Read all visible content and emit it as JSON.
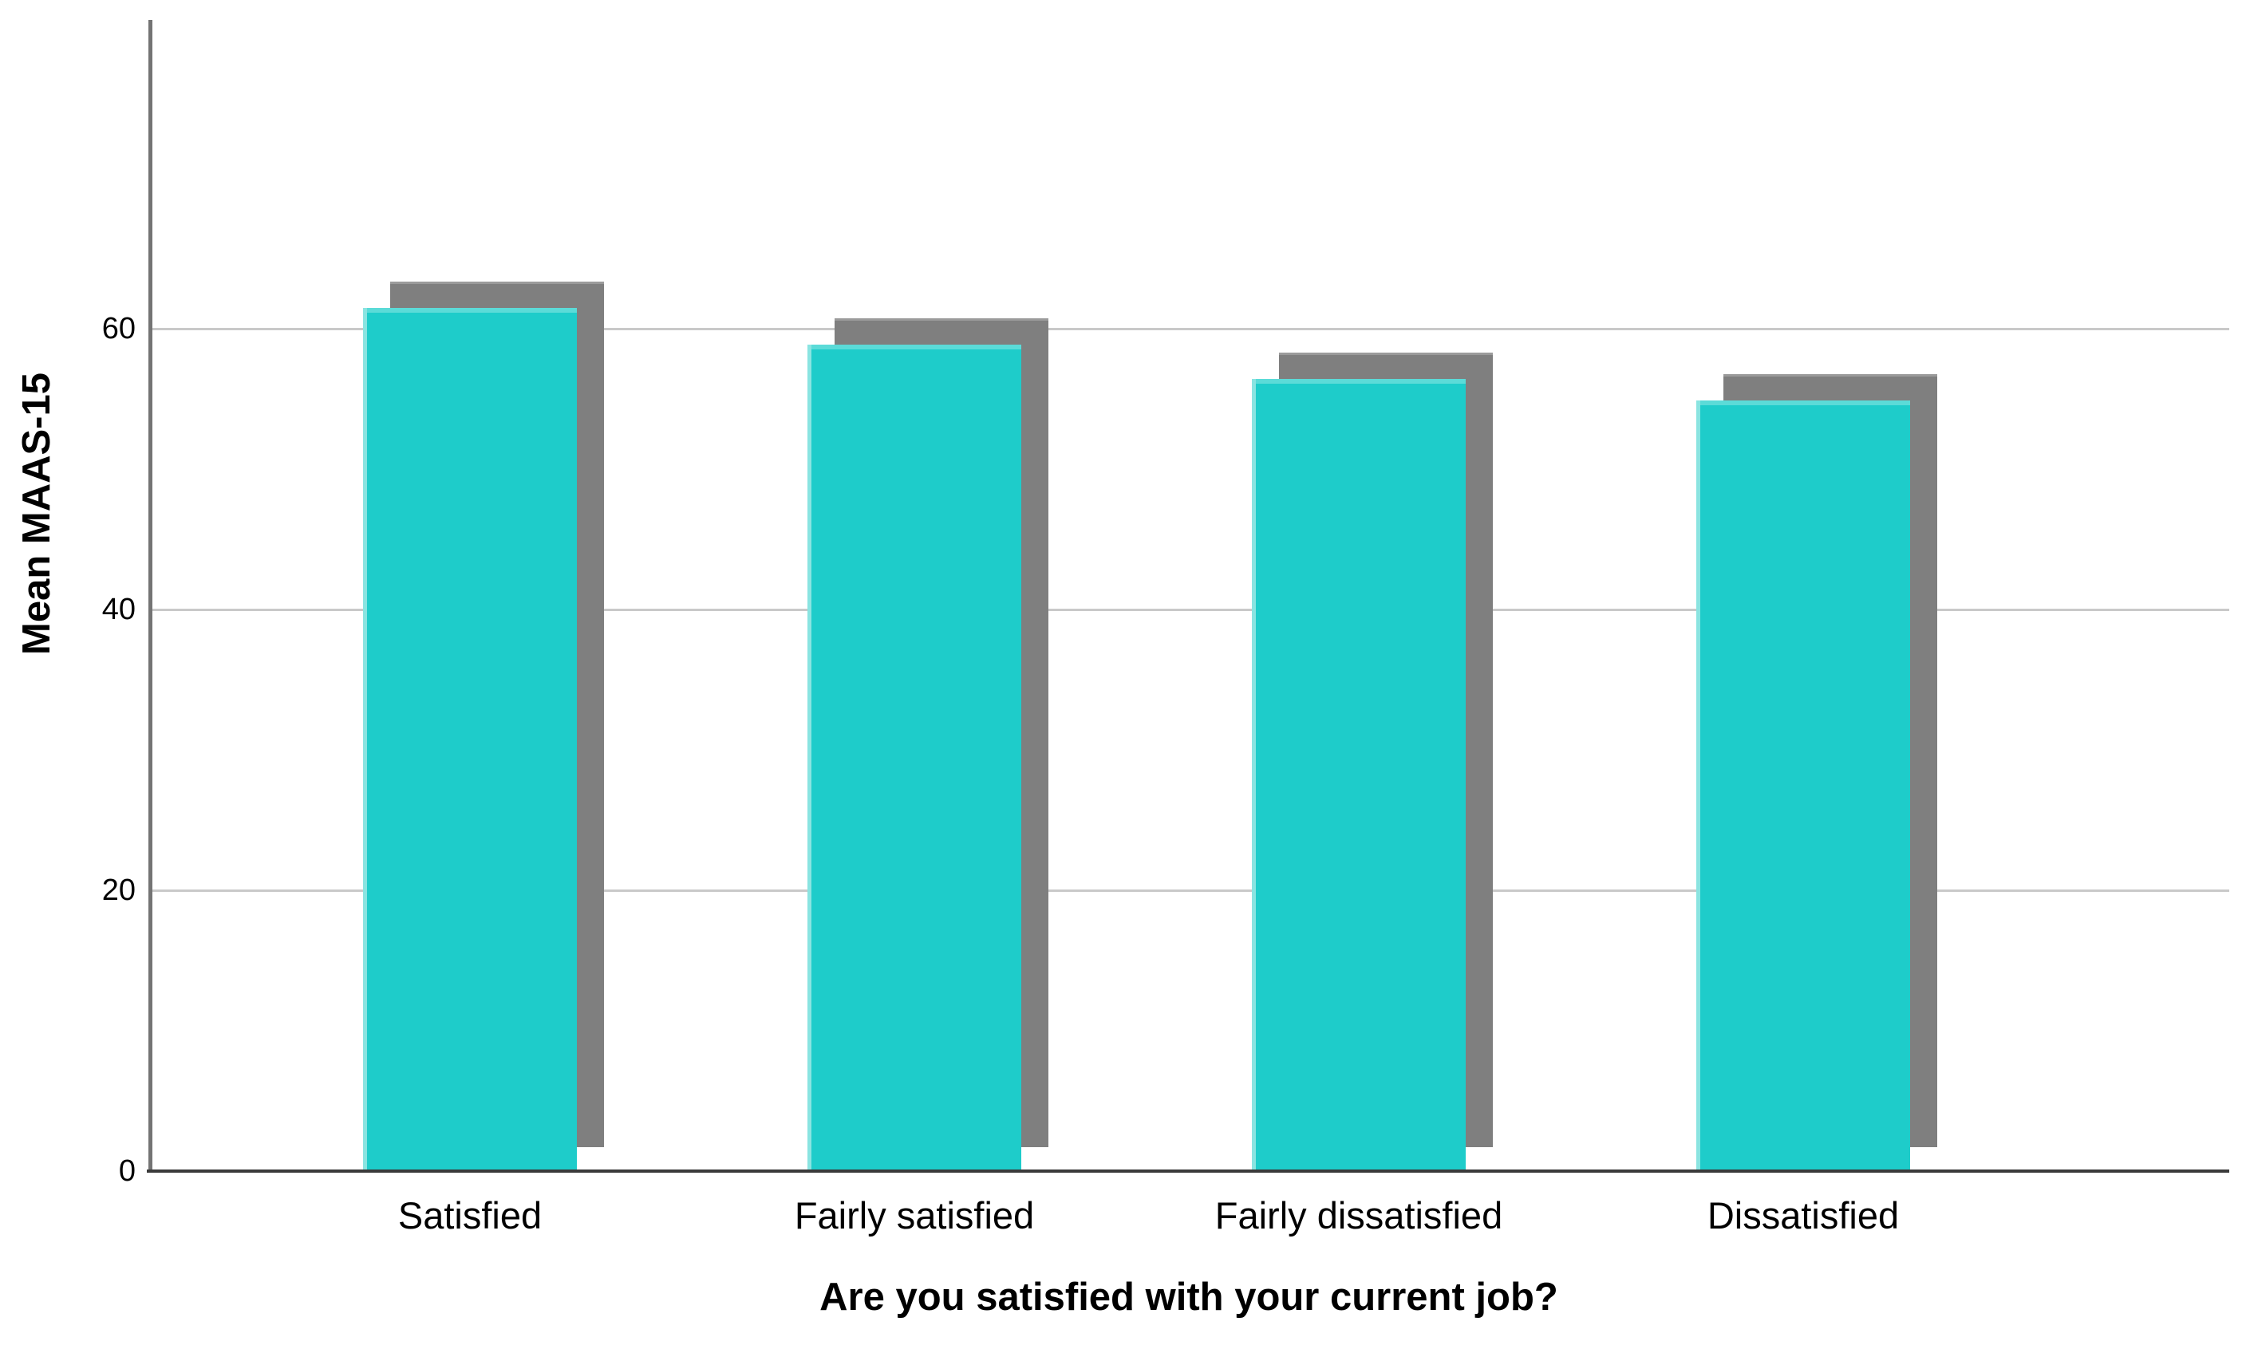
{
  "chart_data": {
    "type": "bar",
    "title": "",
    "categories": [
      "Satisfied",
      "Fairly satisfied",
      "Fairly dissatisfied",
      "Dissatisfied"
    ],
    "series": [
      {
        "name": "Mean MAAS-15",
        "values": [
          61.5,
          58.9,
          56.4,
          54.9
        ]
      }
    ],
    "xlabel": "Are you satisfied with your current job?",
    "ylabel": "Mean MAAS-15",
    "ylim": [
      0,
      82
    ],
    "yticks": [
      0,
      20,
      40,
      60
    ],
    "grid": "horizontal",
    "legend": "none",
    "style": {
      "bar_color": "#1ECCCA",
      "bar_left_highlight": "#8AE4E1",
      "bar_top_highlight": "#5BDBD8",
      "shadow_color": "#7F7F7F",
      "shadow_top_highlight": "#9B9B9B",
      "gridline_color": "#C9C9C9",
      "yaxis_line_color": "#747474",
      "xaxis_line_color": "#3A3A3A",
      "text_color": "#000000",
      "background_color": "#FFFFFF"
    }
  }
}
